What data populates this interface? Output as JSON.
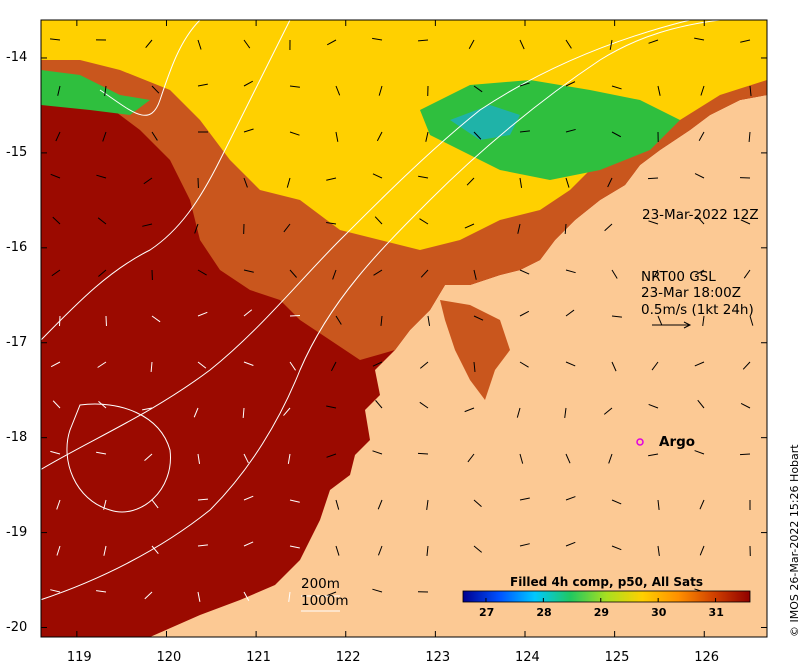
{
  "map": {
    "x_ticks": [
      "119",
      "120",
      "121",
      "122",
      "123",
      "124",
      "125",
      "126"
    ],
    "y_ticks": [
      "-14",
      "-15",
      "-16",
      "-17",
      "-18",
      "-19",
      "-20"
    ],
    "lon_range": [
      118.6,
      126.7
    ],
    "lat_range": [
      -20.1,
      -13.6
    ],
    "colors": {
      "land": "#fcc994",
      "hot": "#9b0a00",
      "warm": "#c9561d",
      "yellow": "#ffd000",
      "green": "#2fbf3e",
      "teal": "#1fb3a8",
      "contour": "#ffffff"
    }
  },
  "annotations": {
    "timestamp": "23-Mar-2022 12Z",
    "currents_title": "NRT00 GSL",
    "currents_time": "23-Mar 18:00Z",
    "currents_scale": "0.5m/s (1kt 24h)",
    "argo_label": "Argo",
    "depth_200": "200m",
    "depth_1000": "1000m"
  },
  "colorbar": {
    "title": "Filled 4h comp, p50, All Sats",
    "ticks": [
      "27",
      "28",
      "29",
      "30",
      "31"
    ],
    "range": [
      26.6,
      31.6
    ],
    "colors": [
      "#00008f",
      "#0050ff",
      "#00c8ff",
      "#20c860",
      "#a8e020",
      "#ffd000",
      "#ff9000",
      "#d04000",
      "#900000"
    ]
  },
  "credit": "© IMOS 26-Mar-2022 15:26 Hobart"
}
